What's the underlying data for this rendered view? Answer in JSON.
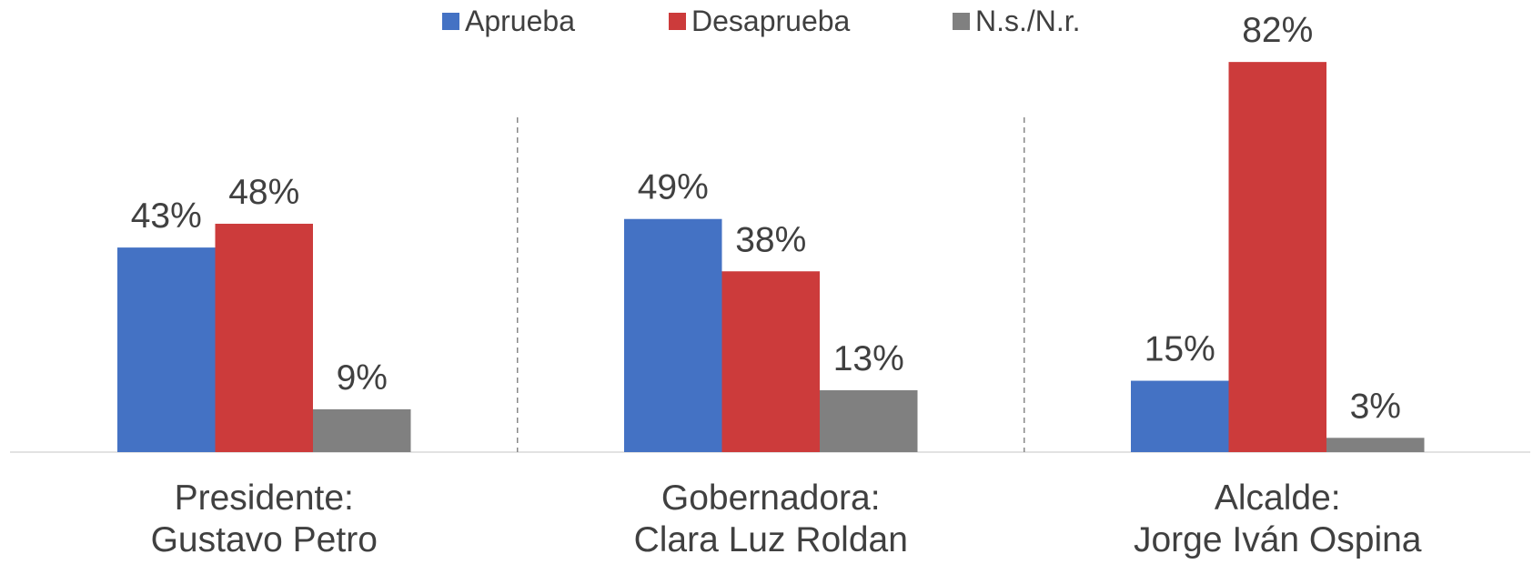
{
  "chart_data": {
    "type": "bar",
    "categories": [
      "Presidente:\nGustavo Petro",
      "Gobernadora:\nClara Luz Roldan",
      "Alcalde:\nJorge Iván Ospina"
    ],
    "series": [
      {
        "name": "Aprueba",
        "color": "#4472c4",
        "values": [
          43,
          49,
          15
        ],
        "value_labels": [
          "43%",
          "49%",
          "15%"
        ]
      },
      {
        "name": "Desaprueba",
        "color": "#cc3b3b",
        "values": [
          48,
          38,
          82
        ],
        "value_labels": [
          "48%",
          "38%",
          "82%"
        ]
      },
      {
        "name": "N.s./N.r.",
        "color": "#808080",
        "values": [
          9,
          13,
          3
        ],
        "value_labels": [
          "9%",
          "13%",
          "3%"
        ]
      }
    ],
    "legend": "top"
  }
}
